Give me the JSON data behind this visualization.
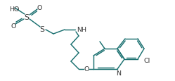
{
  "bg": "#ffffff",
  "lc": "#1a7070",
  "tc": "#333333",
  "lw": 1.05,
  "fs": 6.8,
  "figsize": [
    2.49,
    1.16
  ],
  "dpi": 100,
  "xlim": [
    0,
    249
  ],
  "ylim": [
    0,
    116
  ]
}
